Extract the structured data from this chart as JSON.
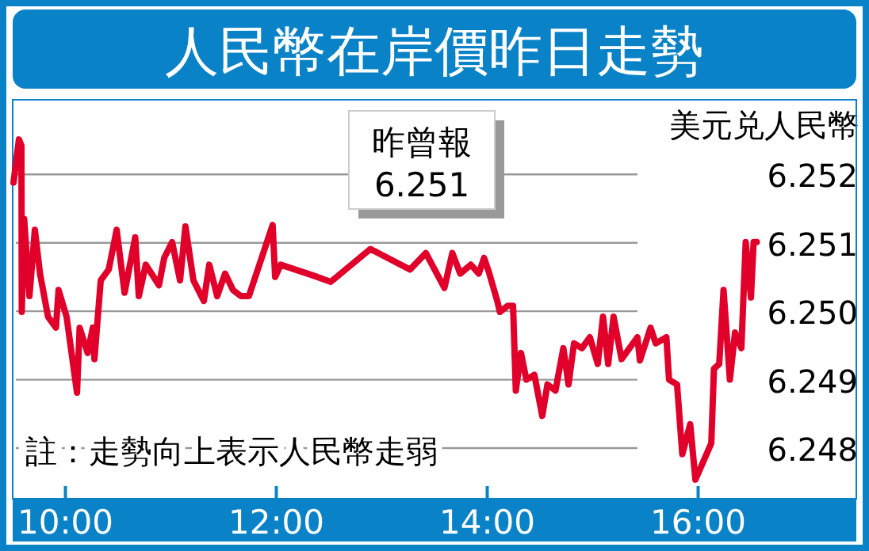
{
  "chart_data": {
    "type": "line",
    "title": "人民幣在岸價昨日走勢",
    "ylabel": "美元兑人民幣",
    "annotations": [
      "昨曾報 6.251",
      "註：走勢向上表示人民幣走弱"
    ],
    "xlim": [
      9.5,
      17.5
    ],
    "ylim": [
      6.24726,
      6.25309
    ],
    "xticks": [
      {
        "value": 10,
        "label": "10:00"
      },
      {
        "value": 12,
        "label": "12:00"
      },
      {
        "value": 14,
        "label": "14:00"
      },
      {
        "value": 16,
        "label": "16:00"
      }
    ],
    "yticks": [
      6.248,
      6.249,
      {
        "value": 6.25,
        "label": "6.250"
      },
      6.251,
      6.252
    ],
    "grid": "y",
    "line_style": "solid",
    "series": [
      {
        "color": "#e0002a",
        "x": [
          9.508,
          9.559,
          9.583,
          9.586,
          9.609,
          9.659,
          9.71,
          9.759,
          9.835,
          9.91,
          9.935,
          10.011,
          10.11,
          10.135,
          10.211,
          10.26,
          10.275,
          10.335,
          10.411,
          10.486,
          10.561,
          10.662,
          10.696,
          10.762,
          10.887,
          10.937,
          11.012,
          11.087,
          11.138,
          11.214,
          11.313,
          11.364,
          11.439,
          11.514,
          11.589,
          11.665,
          11.74,
          11.965,
          11.989,
          12.041,
          12.391,
          12.516,
          12.892,
          13.268,
          13.418,
          13.594,
          13.669,
          13.744,
          13.845,
          13.92,
          13.97,
          14.02,
          14.095,
          14.12,
          14.195,
          14.245,
          14.271,
          14.32,
          14.371,
          14.447,
          14.522,
          14.571,
          14.647,
          14.722,
          14.771,
          14.823,
          14.898,
          14.973,
          15.048,
          15.098,
          15.147,
          15.198,
          15.274,
          15.349,
          15.424,
          15.448,
          15.549,
          15.598,
          15.699,
          15.724,
          15.8,
          15.85,
          15.925,
          15.974,
          16.125,
          16.15,
          16.2,
          16.241,
          16.301,
          16.35,
          16.41,
          16.451,
          16.501,
          16.526,
          16.556
        ],
        "values": [
          6.25188,
          6.25251,
          6.25242,
          6.24999,
          6.25135,
          6.25022,
          6.25119,
          6.25055,
          6.24992,
          6.24976,
          6.25031,
          6.24992,
          6.24881,
          6.24976,
          6.24939,
          6.24976,
          6.2493,
          6.25045,
          6.25061,
          6.25119,
          6.25027,
          6.25108,
          6.25022,
          6.25068,
          6.25038,
          6.25078,
          6.25101,
          6.25045,
          6.25124,
          6.25045,
          6.25015,
          6.25068,
          6.25022,
          6.25055,
          6.25031,
          6.25022,
          6.25022,
          6.25126,
          6.2505,
          6.25068,
          6.2505,
          6.25043,
          6.25091,
          6.25061,
          6.25085,
          6.25034,
          6.25085,
          6.25055,
          6.25068,
          6.25055,
          6.25078,
          6.25055,
          6.25015,
          6.24999,
          6.25008,
          6.25008,
          6.24884,
          6.24939,
          6.249,
          6.24907,
          6.24847,
          6.24893,
          6.24884,
          6.24946,
          6.24893,
          6.24953,
          6.24946,
          6.24962,
          6.24923,
          6.24992,
          6.24923,
          6.24992,
          6.2493,
          6.24946,
          6.24962,
          6.24928,
          6.24976,
          6.24953,
          6.24962,
          6.249,
          6.24893,
          6.24791,
          6.24835,
          6.24754,
          6.24807,
          6.24916,
          6.24923,
          6.25031,
          6.249,
          6.24969,
          6.24946,
          6.25101,
          6.2502,
          6.25101,
          6.25101
        ]
      }
    ]
  }
}
